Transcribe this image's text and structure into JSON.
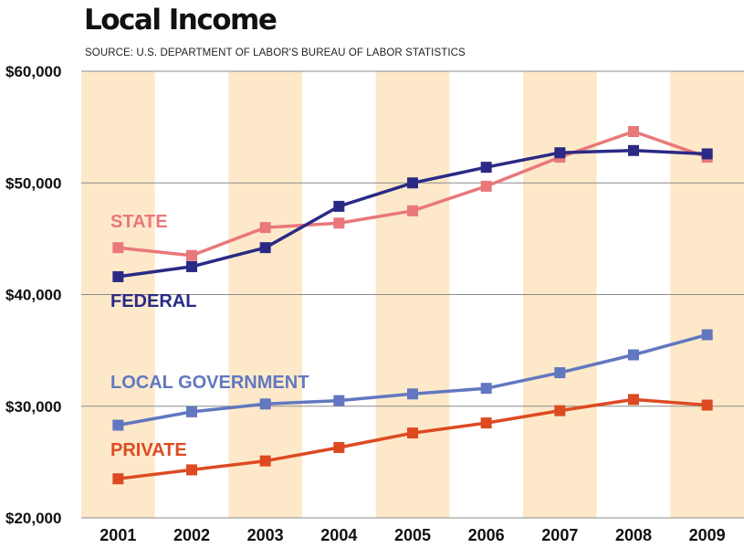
{
  "header": {
    "title": "Local Income",
    "source": "SOURCE: U.S. DEPARTMENT OF LABOR'S BUREAU OF LABOR STATISTICS"
  },
  "colors": {
    "stripe": "#fde9c9",
    "grid": "#8c8c8c",
    "State": "#e9787a",
    "Federal": "#2a2a86",
    "Local Government": "#6277c0",
    "Private": "#dd4a22"
  },
  "chart_data": {
    "type": "line",
    "title": "Local Income",
    "subtitle": "SOURCE: U.S. DEPARTMENT OF LABOR'S BUREAU OF LABOR STATISTICS",
    "x": [
      "2001",
      "2002",
      "2003",
      "2004",
      "2005",
      "2006",
      "2007",
      "2008",
      "2009"
    ],
    "ylim": [
      20000,
      60000
    ],
    "yticks": [
      20000,
      30000,
      40000,
      50000,
      60000
    ],
    "ytick_labels": [
      "$20,000",
      "$30,000",
      "$40,000",
      "$50,000",
      "$60,000"
    ],
    "grid": true,
    "alternating_year_shading": true,
    "series": [
      {
        "name": "STATE",
        "key": "State",
        "values": [
          44200,
          43500,
          46000,
          46400,
          47500,
          49700,
          52300,
          54600,
          52300
        ]
      },
      {
        "name": "FEDERAL",
        "key": "Federal",
        "values": [
          41600,
          42500,
          44200,
          47900,
          50000,
          51400,
          52700,
          52900,
          52600
        ]
      },
      {
        "name": "LOCAL GOVERNMENT",
        "key": "Local Government",
        "values": [
          28300,
          29500,
          30200,
          30500,
          31100,
          31600,
          33000,
          34600,
          36400
        ]
      },
      {
        "name": "PRIVATE",
        "key": "Private",
        "values": [
          23500,
          24300,
          25100,
          26300,
          27600,
          28500,
          29600,
          30600,
          30100
        ]
      }
    ]
  }
}
